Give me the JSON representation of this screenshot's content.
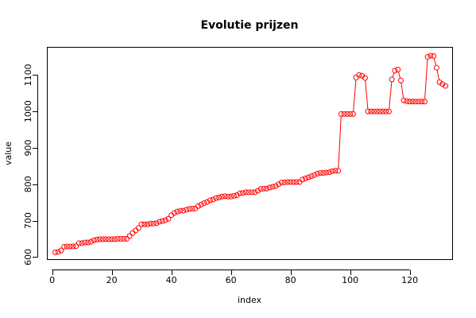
{
  "chart_data": {
    "type": "line",
    "title": "Evolutie prijzen",
    "xlabel": "index",
    "ylabel": "value",
    "xlim": [
      -1.5,
      134.5
    ],
    "ylim": [
      592,
      1175
    ],
    "xticks": [
      0,
      20,
      40,
      60,
      80,
      100,
      120
    ],
    "yticks": [
      600,
      700,
      800,
      900,
      1000,
      1100
    ],
    "grid": false,
    "color": "#ff0000",
    "style": "line with open circle markers",
    "series": [
      {
        "x": [
          1,
          2,
          3,
          4,
          5,
          6,
          7,
          8,
          9,
          10,
          11,
          12,
          13,
          14,
          15,
          16,
          17,
          18,
          19,
          20,
          21,
          22,
          23,
          24,
          25,
          26,
          27,
          28,
          29,
          30,
          31,
          32,
          33,
          34,
          35,
          36,
          37,
          38,
          39,
          40,
          41,
          42,
          43,
          44,
          45,
          46,
          47,
          48,
          49,
          50,
          51,
          52,
          53,
          54,
          55,
          56,
          57,
          58,
          59,
          60,
          61,
          62,
          63,
          64,
          65,
          66,
          67,
          68,
          69,
          70,
          71,
          72,
          73,
          74,
          75,
          76,
          77,
          78,
          79,
          80,
          81,
          82,
          83,
          84,
          85,
          86,
          87,
          88,
          89,
          90,
          91,
          92,
          93,
          94,
          95,
          96,
          97,
          98,
          99,
          100,
          101,
          102,
          103,
          104,
          105,
          106,
          107,
          108,
          109,
          110,
          111,
          112,
          113,
          114,
          115,
          116,
          117,
          118,
          119,
          120,
          121,
          122,
          123,
          124,
          125,
          126,
          127,
          128,
          129,
          130,
          131,
          132
        ],
        "values": [
          613,
          614,
          618,
          628,
          629,
          629,
          629,
          630,
          638,
          638,
          640,
          640,
          642,
          646,
          648,
          649,
          649,
          649,
          649,
          649,
          649,
          650,
          650,
          650,
          650,
          658,
          666,
          673,
          680,
          690,
          690,
          690,
          692,
          692,
          693,
          697,
          699,
          701,
          705,
          715,
          721,
          725,
          727,
          727,
          730,
          732,
          733,
          733,
          740,
          744,
          748,
          751,
          756,
          758,
          762,
          764,
          766,
          767,
          766,
          766,
          768,
          770,
          775,
          776,
          778,
          778,
          778,
          778,
          782,
          787,
          788,
          788,
          791,
          793,
          795,
          800,
          805,
          805,
          806,
          806,
          806,
          806,
          806,
          813,
          816,
          819,
          822,
          825,
          829,
          831,
          831,
          832,
          833,
          836,
          837,
          837,
          993,
          993,
          993,
          993,
          993,
          1093,
          1100,
          1098,
          1092,
          1000,
          1000,
          1000,
          1000,
          1000,
          1000,
          1000,
          1000,
          1088,
          1112,
          1115,
          1085,
          1030,
          1028,
          1027,
          1027,
          1027,
          1027,
          1027,
          1027,
          1150,
          1153,
          1152,
          1120,
          1080,
          1075,
          1070
        ]
      }
    ]
  }
}
